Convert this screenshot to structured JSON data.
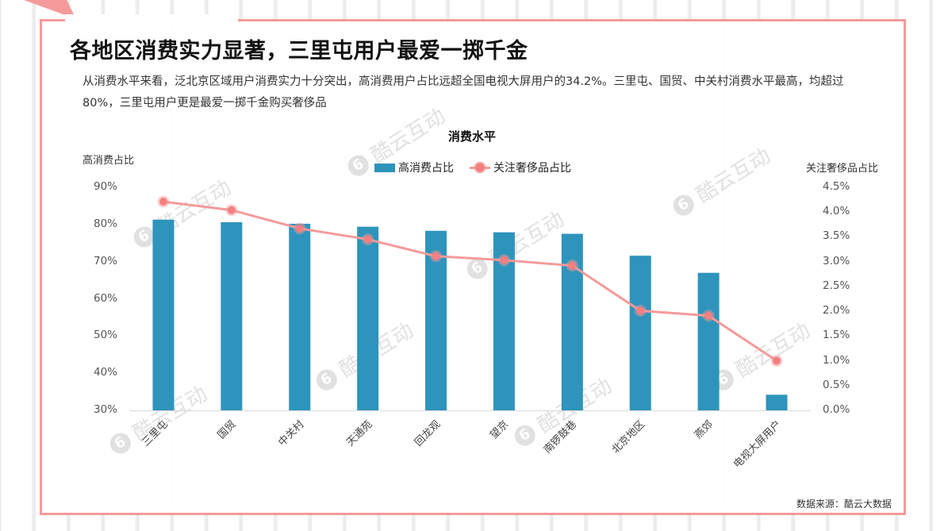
{
  "title": "各地区消费实力显著，三里屯用户最爱一掷千金",
  "description": "从消费水平来看，泛北京区域用户消费实力十分突出，高消费用户占比远超全国电视大屏用户的34.2%。三里屯、国贸、中关村消费水平最高，均超过80%，三里屯用户更是最爱一掷千金购买奢侈品",
  "source": "数据来源：酷云大数据",
  "watermark": "酷云互动",
  "watermark_logo": "6",
  "colors": {
    "bar": "#2e94bb",
    "line": "#f59a9a",
    "marker": "#f47f80",
    "frame": "#f59a9a"
  },
  "chart_data": {
    "type": "bar+line",
    "title": "消费水平",
    "categories": [
      "三里屯",
      "国贸",
      "中关村",
      "天通苑",
      "回龙观",
      "望京",
      "南锣鼓巷",
      "北京地区",
      "燕郊",
      "电视大屏用户"
    ],
    "series": [
      {
        "name": "高消费占比",
        "type": "bar",
        "axis": "left",
        "values": [
          81.3,
          80.6,
          80.2,
          79.4,
          78.3,
          77.9,
          77.5,
          71.6,
          67.0,
          34.2
        ]
      },
      {
        "name": "关注奢侈品占比",
        "type": "line",
        "axis": "right",
        "values": [
          4.21,
          4.04,
          3.67,
          3.45,
          3.11,
          3.03,
          2.92,
          2.01,
          1.91,
          1.0
        ]
      }
    ],
    "ylabel": "高消费占比",
    "ylim": [
      30,
      90
    ],
    "yticks": [
      "90%",
      "80%",
      "70%",
      "60%",
      "50%",
      "40%",
      "30%"
    ],
    "y2label": "关注奢侈品占比",
    "y2lim": [
      0,
      4.5
    ],
    "y2ticks": [
      "4.5%",
      "4.0%",
      "3.5%",
      "3.0%",
      "2.5%",
      "2.0%",
      "1.5%",
      "1.0%",
      "0.5%",
      "0.0%"
    ],
    "legend_position": "top",
    "grid": false
  }
}
